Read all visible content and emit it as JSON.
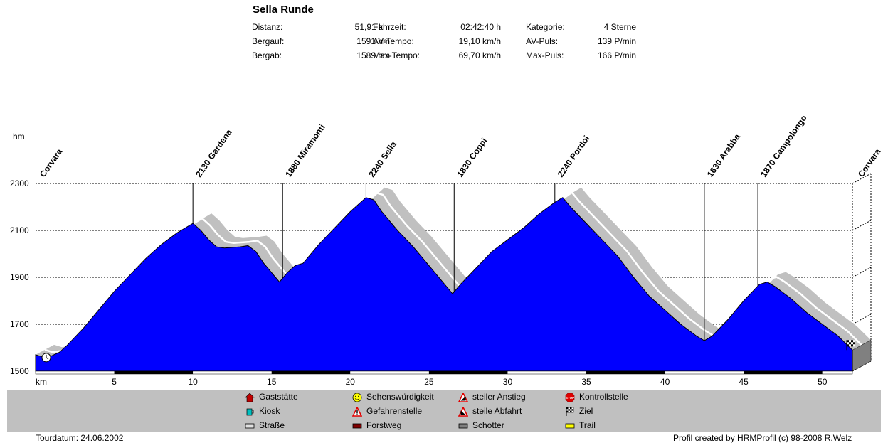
{
  "header": {
    "title": "Sella Runde",
    "stats": [
      {
        "label": "Distanz:",
        "value": "51,91 km"
      },
      {
        "label": "Bergauf:",
        "value": "1591 hm"
      },
      {
        "label": "Bergab:",
        "value": "1589 hm"
      },
      {
        "label": "Fahrzeit:",
        "value": "02:42:40 h"
      },
      {
        "label": "AV-Tempo:",
        "value": "19,10 km/h"
      },
      {
        "label": "Max-Tempo:",
        "value": "69,70 km/h"
      },
      {
        "label": "Kategorie:",
        "value": "4 Sterne"
      },
      {
        "label": "AV-Puls:",
        "value": "139 P/min"
      },
      {
        "label": "Max-Puls:",
        "value": "166 P/min"
      }
    ]
  },
  "chart_data": {
    "type": "area",
    "ylabel": "hm",
    "xlabel": "km",
    "xlim": [
      0,
      51.91
    ],
    "ylim": [
      1500,
      2300
    ],
    "yticks": [
      1500,
      1700,
      1900,
      2100,
      2300
    ],
    "xticks": [
      5,
      10,
      15,
      20,
      25,
      30,
      35,
      40,
      45,
      50
    ],
    "grid": true,
    "fill_color": "#0000ff",
    "x": [
      0,
      0.5,
      1,
      1.5,
      2,
      3,
      4,
      5,
      6,
      7,
      8,
      9,
      10,
      10.5,
      11,
      11.5,
      12,
      13,
      13.5,
      14,
      14.5,
      15,
      15.5,
      16,
      16.5,
      17,
      18,
      19,
      20,
      21,
      21.5,
      22,
      23,
      24,
      25,
      26,
      26.5,
      27,
      28,
      29,
      30,
      31,
      32,
      33,
      33.5,
      34,
      35,
      36,
      37,
      38,
      39,
      40,
      41,
      42,
      42.5,
      43,
      44,
      45,
      46,
      46.5,
      47,
      48,
      49,
      50,
      51,
      51.91
    ],
    "y": [
      1570,
      1560,
      1565,
      1580,
      1610,
      1680,
      1760,
      1840,
      1910,
      1980,
      2040,
      2090,
      2130,
      2100,
      2060,
      2030,
      2025,
      2030,
      2035,
      2010,
      1960,
      1920,
      1880,
      1920,
      1950,
      1960,
      2040,
      2110,
      2180,
      2240,
      2230,
      2180,
      2100,
      2030,
      1950,
      1870,
      1830,
      1870,
      1940,
      2010,
      2060,
      2110,
      2170,
      2220,
      2240,
      2200,
      2130,
      2060,
      1990,
      1900,
      1820,
      1760,
      1700,
      1650,
      1630,
      1650,
      1720,
      1800,
      1870,
      1880,
      1860,
      1810,
      1750,
      1700,
      1650,
      1590
    ],
    "waypoints": [
      {
        "km": 0,
        "label": "Corvara"
      },
      {
        "km": 10,
        "label": "2130  Gardena"
      },
      {
        "km": 15.7,
        "label": "1880  Miramonti"
      },
      {
        "km": 21,
        "label": "2240  Sella"
      },
      {
        "km": 26.6,
        "label": "1830  Coppi"
      },
      {
        "km": 33,
        "label": "2240  Pordoi"
      },
      {
        "km": 42.5,
        "label": "1630  Arabba"
      },
      {
        "km": 45.9,
        "label": "1870  Campolongo"
      },
      {
        "km": 51.91,
        "label": "Corvara"
      }
    ],
    "road_segments": [
      {
        "from": 0,
        "to": 5,
        "type": "Straße"
      },
      {
        "from": 5,
        "to": 10,
        "type": "Forstweg"
      },
      {
        "from": 10,
        "to": 15,
        "type": "Straße"
      },
      {
        "from": 15,
        "to": 20,
        "type": "Forstweg"
      },
      {
        "from": 20,
        "to": 25,
        "type": "Straße"
      },
      {
        "from": 25,
        "to": 30,
        "type": "Forstweg"
      },
      {
        "from": 30,
        "to": 35,
        "type": "Straße"
      },
      {
        "from": 35,
        "to": 40,
        "type": "Forstweg"
      },
      {
        "from": 40,
        "to": 45,
        "type": "Straße"
      },
      {
        "from": 45,
        "to": 50,
        "type": "Forstweg"
      },
      {
        "from": 50,
        "to": 51.91,
        "type": "Straße"
      }
    ]
  },
  "legend": [
    {
      "label": "Gaststätte",
      "icon": "house-icon"
    },
    {
      "label": "Kiosk",
      "icon": "cup-icon"
    },
    {
      "label": "Straße",
      "icon": "road-swatch-icon"
    },
    {
      "label": "Sehenswürdigkeit",
      "icon": "smiley-icon"
    },
    {
      "label": "Gefahrenstelle",
      "icon": "warning-icon"
    },
    {
      "label": "Forstweg",
      "icon": "forest-road-swatch-icon"
    },
    {
      "label": "steiler Anstieg",
      "icon": "steep-climb-icon"
    },
    {
      "label": "steile Abfahrt",
      "icon": "steep-descent-icon"
    },
    {
      "label": "Schotter",
      "icon": "gravel-swatch-icon"
    },
    {
      "label": "Kontrollstelle",
      "icon": "stop-icon"
    },
    {
      "label": "Ziel",
      "icon": "finish-flag-icon"
    },
    {
      "label": "Trail",
      "icon": "trail-swatch-icon"
    }
  ],
  "footer": {
    "tour_date": "Tourdatum: 24.06.2002",
    "credit": "Profil created by HRMProfil (c) 98-2008 R.Welz"
  }
}
